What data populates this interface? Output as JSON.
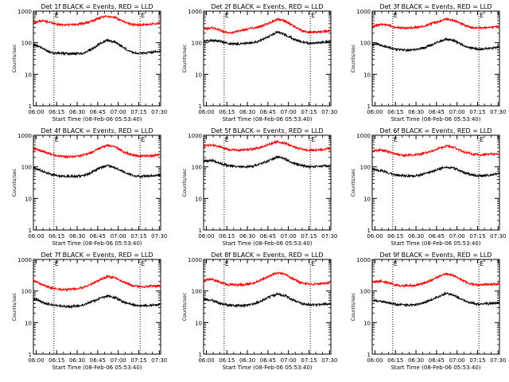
{
  "figure": {
    "x_ticks": [
      "06:00",
      "06:15",
      "06:30",
      "06:45",
      "07:00",
      "07:15",
      "07:30"
    ],
    "x_label": "Start Time (08-Feb-06 05:53:40)",
    "y_label": "Counts/sec",
    "y_ticks": [
      "1",
      "10",
      "100",
      "1000"
    ]
  },
  "chart_data": [
    {
      "type": "line",
      "title": "Det 1f BLACK = Events, RED = LLD",
      "yscale": "log",
      "ylim": [
        1,
        1000
      ],
      "x_range": [
        "05:58",
        "07:31"
      ],
      "markers": [
        "06:13",
        "07:16"
      ],
      "marker_labels": [
        "E",
        "E"
      ],
      "series": [
        {
          "name": "Events",
          "color": "#000000",
          "x": [
            "05:58",
            "06:02",
            "06:07",
            "06:13",
            "06:20",
            "06:27",
            "06:34",
            "06:40",
            "06:46",
            "06:52",
            "06:58",
            "07:04",
            "07:10",
            "07:16",
            "07:22",
            "07:31"
          ],
          "y": [
            85,
            78,
            58,
            47,
            46,
            45,
            46,
            60,
            90,
            120,
            105,
            70,
            50,
            46,
            48,
            54
          ]
        },
        {
          "name": "LLD",
          "color": "#ff0000",
          "x": [
            "05:58",
            "06:04",
            "06:10",
            "06:16",
            "06:22",
            "06:28",
            "06:34",
            "06:40",
            "06:46",
            "06:52",
            "06:58",
            "07:04",
            "07:10",
            "07:16",
            "07:22",
            "07:31"
          ],
          "y": [
            430,
            500,
            450,
            380,
            370,
            380,
            400,
            470,
            600,
            700,
            620,
            470,
            380,
            360,
            380,
            420
          ]
        }
      ]
    },
    {
      "type": "line",
      "title": "Det 2f BLACK = Events, RED = LLD",
      "yscale": "log",
      "ylim": [
        1,
        1000
      ],
      "x_range": [
        "05:58",
        "07:31"
      ],
      "markers": [
        "06:13",
        "07:16"
      ],
      "marker_labels": [
        "E",
        "E"
      ],
      "series": [
        {
          "name": "Events",
          "color": "#000000",
          "x": [
            "05:58",
            "06:04",
            "06:10",
            "06:16",
            "06:22",
            "06:28",
            "06:34",
            "06:40",
            "06:46",
            "06:52",
            "06:58",
            "07:04",
            "07:10",
            "07:16",
            "07:22",
            "07:31"
          ],
          "y": [
            110,
            120,
            110,
            95,
            90,
            95,
            100,
            120,
            160,
            220,
            175,
            130,
            105,
            95,
            100,
            110
          ]
        },
        {
          "name": "LLD",
          "color": "#ff0000",
          "x": [
            "05:58",
            "06:04",
            "06:10",
            "06:16",
            "06:22",
            "06:28",
            "06:34",
            "06:40",
            "06:46",
            "06:52",
            "06:58",
            "07:04",
            "07:10",
            "07:16",
            "07:22",
            "07:31"
          ],
          "y": [
            260,
            300,
            250,
            200,
            220,
            260,
            290,
            330,
            420,
            560,
            480,
            330,
            240,
            210,
            220,
            240
          ]
        }
      ]
    },
    {
      "type": "line",
      "title": "Det 3f BLACK = Events, RED = LLD",
      "yscale": "log",
      "ylim": [
        1,
        1000
      ],
      "x_range": [
        "05:58",
        "07:31"
      ],
      "markers": [
        "06:13",
        "07:16"
      ],
      "marker_labels": [
        "E",
        "E"
      ],
      "series": [
        {
          "name": "Events",
          "color": "#000000",
          "x": [
            "05:58",
            "06:04",
            "06:10",
            "06:16",
            "06:22",
            "06:28",
            "06:34",
            "06:40",
            "06:46",
            "06:52",
            "06:58",
            "07:04",
            "07:10",
            "07:16",
            "07:22",
            "07:31"
          ],
          "y": [
            90,
            85,
            70,
            62,
            58,
            60,
            65,
            80,
            105,
            130,
            115,
            85,
            68,
            62,
            65,
            72
          ]
        },
        {
          "name": "LLD",
          "color": "#ff0000",
          "x": [
            "05:58",
            "06:04",
            "06:10",
            "06:16",
            "06:22",
            "06:28",
            "06:34",
            "06:40",
            "06:46",
            "06:52",
            "06:58",
            "07:04",
            "07:10",
            "07:16",
            "07:22",
            "07:31"
          ],
          "y": [
            330,
            380,
            350,
            300,
            290,
            300,
            320,
            380,
            470,
            570,
            500,
            380,
            310,
            290,
            300,
            330
          ]
        }
      ]
    },
    {
      "type": "line",
      "title": "Det 4f BLACK = Events, RED = LLD",
      "yscale": "log",
      "ylim": [
        1,
        1000
      ],
      "x_range": [
        "05:58",
        "07:31"
      ],
      "markers": [
        "06:13",
        "07:16"
      ],
      "marker_labels": [
        "E",
        "E"
      ],
      "series": [
        {
          "name": "Events",
          "color": "#000000",
          "x": [
            "05:58",
            "06:04",
            "06:10",
            "06:16",
            "06:22",
            "06:28",
            "06:34",
            "06:40",
            "06:46",
            "06:52",
            "06:58",
            "07:04",
            "07:10",
            "07:16",
            "07:22",
            "07:31"
          ],
          "y": [
            95,
            75,
            60,
            52,
            50,
            50,
            52,
            65,
            90,
            110,
            95,
            70,
            55,
            50,
            52,
            55
          ]
        },
        {
          "name": "LLD",
          "color": "#ff0000",
          "x": [
            "05:58",
            "06:04",
            "06:10",
            "06:16",
            "06:22",
            "06:28",
            "06:34",
            "06:40",
            "06:46",
            "06:52",
            "06:58",
            "07:04",
            "07:10",
            "07:16",
            "07:22",
            "07:31"
          ],
          "y": [
            380,
            320,
            260,
            220,
            210,
            215,
            230,
            280,
            380,
            480,
            420,
            300,
            240,
            220,
            225,
            240
          ]
        }
      ]
    },
    {
      "type": "line",
      "title": "Det 5f BLACK = Events, RED = LLD",
      "yscale": "log",
      "ylim": [
        1,
        1000
      ],
      "x_range": [
        "05:58",
        "07:31"
      ],
      "markers": [
        "06:13",
        "07:16"
      ],
      "marker_labels": [
        "E",
        "E"
      ],
      "series": [
        {
          "name": "Events",
          "color": "#000000",
          "x": [
            "05:58",
            "06:04",
            "06:10",
            "06:16",
            "06:22",
            "06:28",
            "06:34",
            "06:40",
            "06:46",
            "06:52",
            "06:58",
            "07:04",
            "07:10",
            "07:16",
            "07:22",
            "07:31"
          ],
          "y": [
            150,
            160,
            130,
            110,
            100,
            100,
            105,
            125,
            160,
            210,
            175,
            130,
            110,
            100,
            105,
            115
          ]
        },
        {
          "name": "LLD",
          "color": "#ff0000",
          "x": [
            "05:58",
            "06:04",
            "06:10",
            "06:16",
            "06:22",
            "06:28",
            "06:34",
            "06:40",
            "06:46",
            "06:52",
            "06:58",
            "07:04",
            "07:10",
            "07:16",
            "07:22",
            "07:31"
          ],
          "y": [
            450,
            500,
            430,
            360,
            340,
            345,
            360,
            420,
            520,
            630,
            560,
            420,
            360,
            340,
            350,
            380
          ]
        }
      ]
    },
    {
      "type": "line",
      "title": "Det 6f BLACK = Events, RED = LLD",
      "yscale": "log",
      "ylim": [
        1,
        1000
      ],
      "x_range": [
        "05:58",
        "07:31"
      ],
      "markers": [
        "06:13",
        "07:16"
      ],
      "marker_labels": [
        "E",
        "E"
      ],
      "series": [
        {
          "name": "Events",
          "color": "#000000",
          "x": [
            "05:58",
            "06:04",
            "06:10",
            "06:16",
            "06:22",
            "06:28",
            "06:34",
            "06:40",
            "06:46",
            "06:52",
            "06:58",
            "07:04",
            "07:10",
            "07:16",
            "07:22",
            "07:31"
          ],
          "y": [
            80,
            78,
            65,
            55,
            52,
            52,
            56,
            68,
            85,
            100,
            90,
            70,
            57,
            52,
            54,
            60
          ]
        },
        {
          "name": "LLD",
          "color": "#ff0000",
          "x": [
            "05:58",
            "06:04",
            "06:10",
            "06:16",
            "06:22",
            "06:28",
            "06:34",
            "06:40",
            "06:46",
            "06:52",
            "06:58",
            "07:04",
            "07:10",
            "07:16",
            "07:22",
            "07:31"
          ],
          "y": [
            320,
            340,
            300,
            250,
            235,
            240,
            255,
            300,
            380,
            460,
            410,
            310,
            260,
            240,
            245,
            260
          ]
        }
      ]
    },
    {
      "type": "line",
      "title": "Det 7f BLACK = Events, RED = LLD",
      "yscale": "log",
      "ylim": [
        1,
        1000
      ],
      "x_range": [
        "05:58",
        "07:31"
      ],
      "markers": [
        "06:13",
        "07:16"
      ],
      "marker_labels": [
        "E",
        "E"
      ],
      "series": [
        {
          "name": "Events",
          "color": "#000000",
          "x": [
            "05:58",
            "06:04",
            "06:10",
            "06:16",
            "06:22",
            "06:28",
            "06:34",
            "06:40",
            "06:46",
            "06:52",
            "06:58",
            "07:04",
            "07:10",
            "07:16",
            "07:22",
            "07:31"
          ],
          "y": [
            60,
            45,
            38,
            34,
            32,
            33,
            36,
            45,
            58,
            70,
            62,
            45,
            37,
            34,
            35,
            38
          ]
        },
        {
          "name": "LLD",
          "color": "#ff0000",
          "x": [
            "05:58",
            "06:04",
            "06:10",
            "06:16",
            "06:22",
            "06:28",
            "06:34",
            "06:40",
            "06:46",
            "06:52",
            "06:58",
            "07:04",
            "07:10",
            "07:16",
            "07:22",
            "07:31"
          ],
          "y": [
            220,
            160,
            130,
            115,
            110,
            115,
            130,
            160,
            220,
            290,
            260,
            190,
            150,
            135,
            140,
            150
          ]
        }
      ]
    },
    {
      "type": "line",
      "title": "Det 8f BLACK = Events, RED = LLD",
      "yscale": "log",
      "ylim": [
        1,
        1000
      ],
      "x_range": [
        "05:58",
        "07:31"
      ],
      "markers": [
        "06:13",
        "07:16"
      ],
      "marker_labels": [
        "E",
        "E"
      ],
      "series": [
        {
          "name": "Events",
          "color": "#000000",
          "x": [
            "05:58",
            "06:04",
            "06:10",
            "06:16",
            "06:22",
            "06:28",
            "06:34",
            "06:40",
            "06:46",
            "06:52",
            "06:58",
            "07:04",
            "07:10",
            "07:16",
            "07:22",
            "07:31"
          ],
          "y": [
            55,
            52,
            40,
            36,
            35,
            35,
            38,
            48,
            65,
            80,
            70,
            50,
            40,
            36,
            37,
            40
          ]
        },
        {
          "name": "LLD",
          "color": "#ff0000",
          "x": [
            "05:58",
            "06:04",
            "06:10",
            "06:16",
            "06:22",
            "06:28",
            "06:34",
            "06:40",
            "06:46",
            "06:52",
            "06:58",
            "07:04",
            "07:10",
            "07:16",
            "07:22",
            "07:31"
          ],
          "y": [
            220,
            240,
            190,
            160,
            155,
            160,
            175,
            220,
            300,
            380,
            330,
            230,
            180,
            165,
            170,
            180
          ]
        }
      ]
    },
    {
      "type": "line",
      "title": "Det 9f BLACK = Events, RED = LLD",
      "yscale": "log",
      "ylim": [
        1,
        1000
      ],
      "x_range": [
        "05:58",
        "07:31"
      ],
      "markers": [
        "06:13",
        "07:16"
      ],
      "marker_labels": [
        "E",
        "E"
      ],
      "series": [
        {
          "name": "Events",
          "color": "#000000",
          "x": [
            "05:58",
            "06:04",
            "06:10",
            "06:16",
            "06:22",
            "06:28",
            "06:34",
            "06:40",
            "06:46",
            "06:52",
            "06:58",
            "07:04",
            "07:10",
            "07:16",
            "07:22",
            "07:31"
          ],
          "y": [
            50,
            48,
            42,
            38,
            36,
            36,
            40,
            50,
            65,
            85,
            72,
            52,
            42,
            38,
            40,
            42
          ]
        },
        {
          "name": "LLD",
          "color": "#ff0000",
          "x": [
            "05:58",
            "06:04",
            "06:10",
            "06:16",
            "06:22",
            "06:28",
            "06:34",
            "06:40",
            "06:46",
            "06:52",
            "06:58",
            "07:04",
            "07:10",
            "07:16",
            "07:22",
            "07:31"
          ],
          "y": [
            190,
            210,
            180,
            150,
            145,
            150,
            165,
            210,
            280,
            360,
            310,
            220,
            170,
            155,
            160,
            170
          ]
        }
      ]
    }
  ]
}
